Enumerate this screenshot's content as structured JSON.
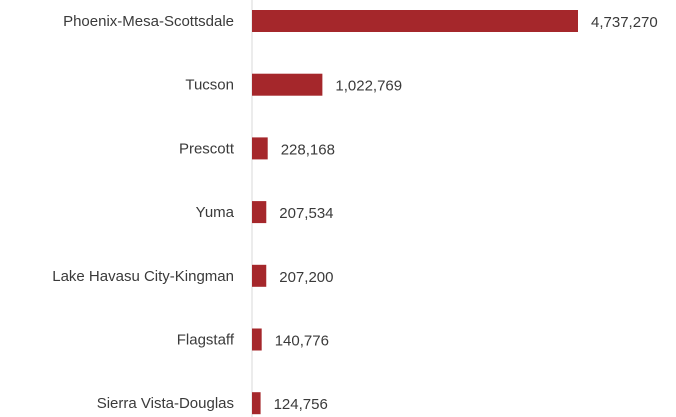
{
  "chart_data": {
    "type": "bar",
    "orientation": "horizontal",
    "categories": [
      "Phoenix-Mesa-Scottsdale",
      "Tucson",
      "Prescott",
      "Yuma",
      "Lake Havasu City-Kingman",
      "Flagstaff",
      "Sierra Vista-Douglas"
    ],
    "values": [
      4737270,
      1022769,
      228168,
      207534,
      207200,
      140776,
      124756
    ],
    "value_labels": [
      "4,737,270",
      "1,022,769",
      "228,168",
      "207,534",
      "207,200",
      "140,776",
      "124,756"
    ],
    "xlim": [
      0,
      4737270
    ],
    "grid": false,
    "legend": "none",
    "bar_color": "#a5272b"
  }
}
